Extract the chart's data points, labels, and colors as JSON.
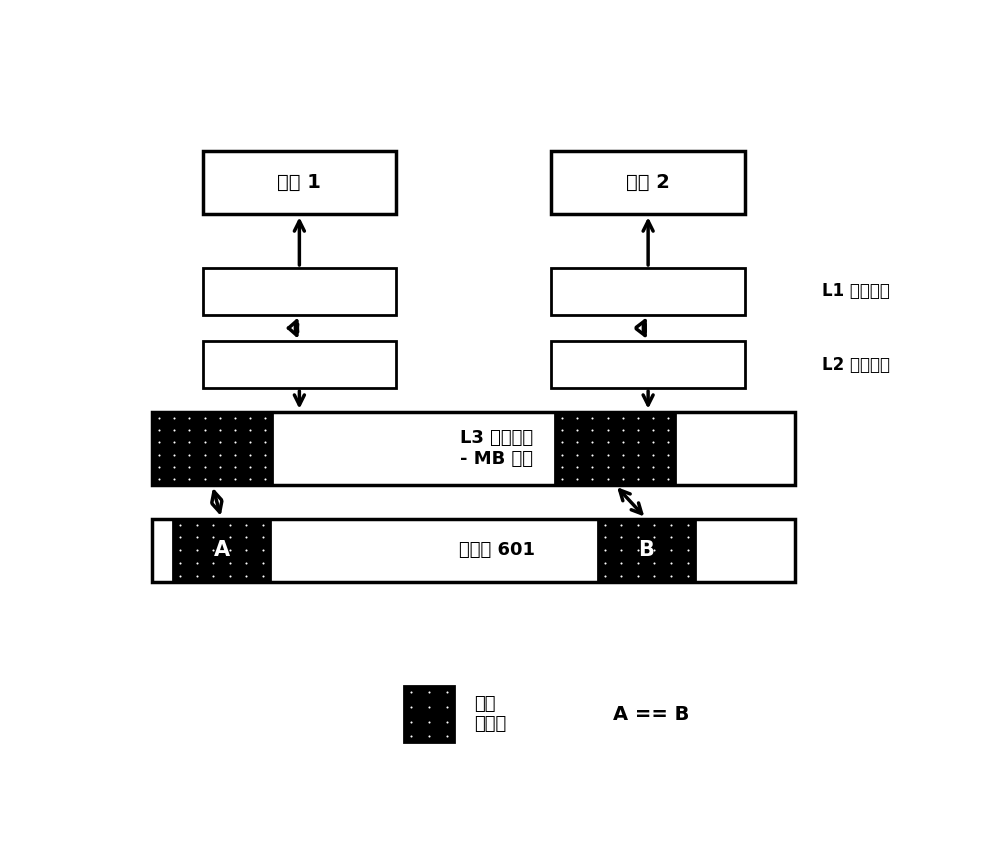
{
  "bg_color": "#ffffff",
  "text_color": "#000000",
  "instance1_label": "实例 1",
  "instance2_label": "实例 2",
  "l1_label": "L1 高速缓存",
  "l2_label": "L2 高速缓存",
  "l3_label": "L3 高速缓存\n- MB 规模",
  "mem_label": "存储器 601",
  "legend_label1": "共享\n存储器",
  "legend_label2": "A == B",
  "a_label": "A",
  "b_label": "B",
  "fig_width": 10.0,
  "fig_height": 8.68
}
